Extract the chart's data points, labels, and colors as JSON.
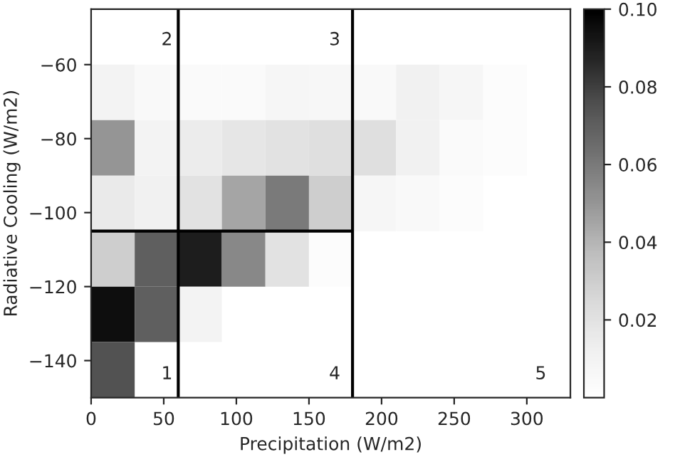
{
  "chart_data": {
    "type": "heatmap",
    "xlabel": "Precipitation (W/m2)",
    "ylabel": "Radiative Cooling (W/m2)",
    "x": [
      15,
      45,
      75,
      105,
      135,
      165,
      195,
      225,
      255,
      285,
      315
    ],
    "y": [
      -67.5,
      -82.5,
      -97.5,
      -112.5,
      -127.5,
      -142.5
    ],
    "cells": [
      [
        0.01,
        0.005,
        0.004,
        0.004,
        0.008,
        0.007,
        0.005,
        0.012,
        0.008,
        0.003,
        null
      ],
      [
        0.05,
        0.01,
        0.015,
        0.018,
        0.02,
        0.022,
        0.022,
        0.012,
        0.004,
        0.003,
        null
      ],
      [
        0.016,
        0.012,
        0.02,
        0.045,
        0.06,
        0.03,
        0.008,
        0.005,
        0.003,
        null,
        null
      ],
      [
        0.03,
        0.07,
        0.09,
        0.055,
        0.02,
        0.003,
        null,
        null,
        null,
        null,
        null
      ],
      [
        0.095,
        0.07,
        0.01,
        null,
        null,
        null,
        null,
        null,
        null,
        null,
        null
      ],
      [
        0.075,
        null,
        null,
        null,
        null,
        null,
        null,
        null,
        null,
        null,
        null
      ]
    ],
    "xlim": [
      0,
      330
    ],
    "ylim": [
      -150,
      -45
    ],
    "xticks": [
      0,
      50,
      100,
      150,
      200,
      250,
      300
    ],
    "yticks": [
      {
        "value": -60,
        "label": "−60"
      },
      {
        "value": -80,
        "label": "−80"
      },
      {
        "value": -100,
        "label": "−100"
      },
      {
        "value": -120,
        "label": "−120"
      },
      {
        "value": -140,
        "label": "−140"
      }
    ],
    "clim": [
      0,
      0.1
    ],
    "cticks": [
      0.02,
      0.04,
      0.06,
      0.08,
      {
        "value": 0.1,
        "label": "0.10"
      }
    ],
    "ref_lines": [
      {
        "axis": "x",
        "value": 60,
        "color": "#000000"
      },
      {
        "axis": "x",
        "value": 180,
        "color": "#000000"
      },
      {
        "axis": "y",
        "value": -105,
        "color": "#000000"
      }
    ],
    "annotations": [
      "1",
      "2",
      "3",
      "4",
      "5"
    ],
    "grid": false
  }
}
